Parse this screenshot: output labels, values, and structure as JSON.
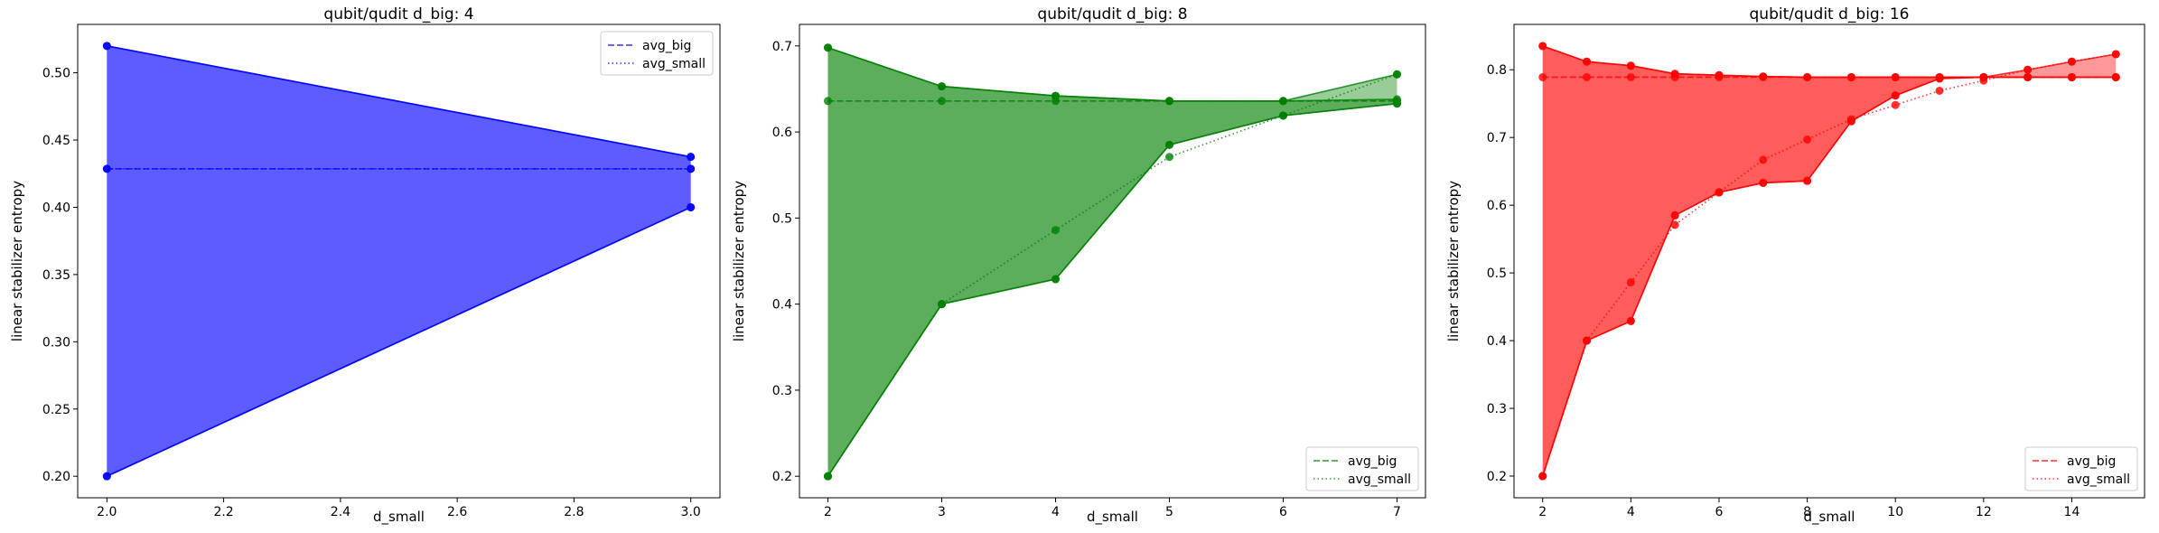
{
  "chart_data": [
    {
      "type": "line",
      "title": "qubit/qudit d_big: 4",
      "xlabel": "d_small",
      "ylabel": "linear stabilizer entropy",
      "color": "#0000ff",
      "xlim": [
        1.95,
        3.05
      ],
      "ylim": [
        0.184,
        0.536
      ],
      "xticks": [
        2.0,
        2.2,
        2.4,
        2.6,
        2.8,
        3.0
      ],
      "xtick_labels": [
        "2.0",
        "2.2",
        "2.4",
        "2.6",
        "2.8",
        "3.0"
      ],
      "yticks": [
        0.2,
        0.25,
        0.3,
        0.35,
        0.4,
        0.45,
        0.5
      ],
      "ytick_labels": [
        "0.20",
        "0.25",
        "0.30",
        "0.35",
        "0.40",
        "0.45",
        "0.50"
      ],
      "legend_position": "top-right",
      "legend": [
        "avg_big",
        "avg_small"
      ],
      "x": [
        2,
        3
      ],
      "big_max": [
        0.52,
        0.4375
      ],
      "big_min": [
        0.2,
        0.4
      ],
      "avg_big": [
        0.4286,
        0.4286
      ],
      "small_max": [
        0.52,
        0.4375
      ],
      "small_min": [
        0.2,
        0.4
      ],
      "avg_small": [
        0.4286,
        0.4286
      ]
    },
    {
      "type": "line",
      "title": "qubit/qudit d_big: 8",
      "xlabel": "d_small",
      "ylabel": "linear stabilizer entropy",
      "color": "#008000",
      "xlim": [
        1.75,
        7.25
      ],
      "ylim": [
        0.175,
        0.725
      ],
      "xticks": [
        2,
        3,
        4,
        5,
        6,
        7
      ],
      "xtick_labels": [
        "2",
        "3",
        "4",
        "5",
        "6",
        "7"
      ],
      "yticks": [
        0.2,
        0.3,
        0.4,
        0.5,
        0.6,
        0.7
      ],
      "ytick_labels": [
        "0.2",
        "0.3",
        "0.4",
        "0.5",
        "0.6",
        "0.7"
      ],
      "legend_position": "bottom-right",
      "legend": [
        "avg_big",
        "avg_small"
      ],
      "x": [
        2,
        3,
        4,
        5,
        6,
        7
      ],
      "big_max": [
        0.698,
        0.653,
        0.642,
        0.636,
        0.636,
        0.638
      ],
      "big_min": [
        0.2,
        0.4,
        0.429,
        0.585,
        0.619,
        0.633
      ],
      "avg_big": [
        0.636,
        0.636,
        0.636,
        0.636,
        0.636,
        0.636
      ],
      "small_max": [
        0.698,
        0.653,
        0.642,
        0.636,
        0.636,
        0.667
      ],
      "small_min": [
        0.2,
        0.4,
        0.429,
        0.585,
        0.619,
        0.633
      ],
      "avg_small": [
        0.2,
        0.4,
        0.486,
        0.571,
        0.619,
        0.667
      ]
    },
    {
      "type": "line",
      "title": "qubit/qudit d_big: 16",
      "xlabel": "d_small",
      "ylabel": "linear stabilizer entropy",
      "color": "#ff0000",
      "xlim": [
        1.35,
        15.65
      ],
      "ylim": [
        0.168,
        0.867
      ],
      "xticks": [
        2,
        4,
        6,
        8,
        10,
        12,
        14
      ],
      "xtick_labels": [
        "2",
        "4",
        "6",
        "8",
        "10",
        "12",
        "14"
      ],
      "yticks": [
        0.2,
        0.3,
        0.4,
        0.5,
        0.6,
        0.7,
        0.8
      ],
      "ytick_labels": [
        "0.2",
        "0.3",
        "0.4",
        "0.5",
        "0.6",
        "0.7",
        "0.8"
      ],
      "legend_position": "bottom-right",
      "legend": [
        "avg_big",
        "avg_small"
      ],
      "x": [
        2,
        3,
        4,
        5,
        6,
        7,
        8,
        9,
        10,
        11,
        12,
        13,
        14,
        15
      ],
      "big_max": [
        0.835,
        0.812,
        0.806,
        0.794,
        0.792,
        0.79,
        0.789,
        0.789,
        0.789,
        0.789,
        0.789,
        0.789,
        0.789,
        0.789
      ],
      "big_min": [
        0.2,
        0.4,
        0.429,
        0.585,
        0.619,
        0.633,
        0.636,
        0.724,
        0.762,
        0.787,
        0.789,
        0.789,
        0.789,
        0.789
      ],
      "avg_big": [
        0.789,
        0.789,
        0.789,
        0.789,
        0.789,
        0.789,
        0.789,
        0.789,
        0.789,
        0.789,
        0.789,
        0.789,
        0.789,
        0.789
      ],
      "small_max": [
        0.835,
        0.812,
        0.806,
        0.794,
        0.792,
        0.79,
        0.789,
        0.789,
        0.789,
        0.789,
        0.789,
        0.8,
        0.812,
        0.823
      ],
      "small_min": [
        0.2,
        0.4,
        0.429,
        0.585,
        0.619,
        0.633,
        0.636,
        0.724,
        0.762,
        0.787,
        0.789,
        0.789,
        0.789,
        0.789
      ],
      "avg_small": [
        0.2,
        0.4,
        0.486,
        0.571,
        0.619,
        0.667,
        0.697,
        0.727,
        0.748,
        0.769,
        0.784,
        0.8,
        0.812,
        0.823
      ]
    }
  ]
}
